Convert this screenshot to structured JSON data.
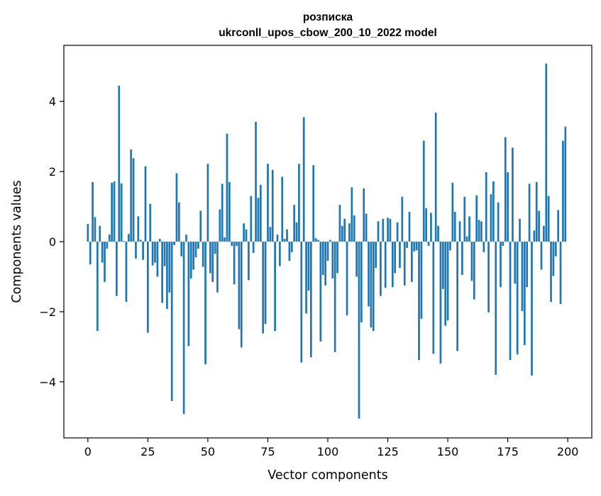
{
  "chart_data": {
    "type": "bar",
    "title": "розписка",
    "subtitle": "ukrconll_upos_cbow_200_10_2022 model",
    "xlabel": "Vector components",
    "ylabel": "Components values",
    "xlim": [
      -10,
      210
    ],
    "ylim": [
      -5.6,
      5.6
    ],
    "xticks": [
      0,
      25,
      50,
      75,
      100,
      125,
      150,
      175,
      200
    ],
    "xtick_labels": [
      "0",
      "25",
      "50",
      "75",
      "100",
      "125",
      "150",
      "175",
      "200"
    ],
    "yticks": [
      -4,
      -2,
      0,
      2,
      4
    ],
    "ytick_labels": [
      "−4",
      "−2",
      "0",
      "2",
      "4"
    ],
    "bar_color": "#1f77b4",
    "grid": false,
    "x": [
      0,
      1,
      2,
      3,
      4,
      5,
      6,
      7,
      8,
      9,
      10,
      11,
      12,
      13,
      14,
      15,
      16,
      17,
      18,
      19,
      20,
      21,
      22,
      23,
      24,
      25,
      26,
      27,
      28,
      29,
      30,
      31,
      32,
      33,
      34,
      35,
      36,
      37,
      38,
      39,
      40,
      41,
      42,
      43,
      44,
      45,
      46,
      47,
      48,
      49,
      50,
      51,
      52,
      53,
      54,
      55,
      56,
      57,
      58,
      59,
      60,
      61,
      62,
      63,
      64,
      65,
      66,
      67,
      68,
      69,
      70,
      71,
      72,
      73,
      74,
      75,
      76,
      77,
      78,
      79,
      80,
      81,
      82,
      83,
      84,
      85,
      86,
      87,
      88,
      89,
      90,
      91,
      92,
      93,
      94,
      95,
      96,
      97,
      98,
      99,
      100,
      101,
      102,
      103,
      104,
      105,
      106,
      107,
      108,
      109,
      110,
      111,
      112,
      113,
      114,
      115,
      116,
      117,
      118,
      119,
      120,
      121,
      122,
      123,
      124,
      125,
      126,
      127,
      128,
      129,
      130,
      131,
      132,
      133,
      134,
      135,
      136,
      137,
      138,
      139,
      140,
      141,
      142,
      143,
      144,
      145,
      146,
      147,
      148,
      149,
      150,
      151,
      152,
      153,
      154,
      155,
      156,
      157,
      158,
      159,
      160,
      161,
      162,
      163,
      164,
      165,
      166,
      167,
      168,
      169,
      170,
      171,
      172,
      173,
      174,
      175,
      176,
      177,
      178,
      179,
      180,
      181,
      182,
      183,
      184,
      185,
      186,
      187,
      188,
      189,
      190,
      191,
      192,
      193,
      194,
      195,
      196,
      197,
      198,
      199
    ],
    "values": [
      0.5,
      -0.65,
      1.7,
      0.7,
      -2.55,
      0.45,
      -0.6,
      -1.15,
      -0.2,
      0.2,
      1.68,
      1.72,
      -1.55,
      4.45,
      1.66,
      0.02,
      -1.72,
      0.22,
      2.63,
      2.38,
      -0.48,
      0.72,
      0.05,
      -0.52,
      2.15,
      -2.6,
      1.08,
      -0.68,
      -0.6,
      -1.0,
      0.08,
      -1.75,
      -0.7,
      -1.92,
      -1.45,
      -4.55,
      -0.1,
      1.95,
      1.12,
      -0.42,
      -4.92,
      0.2,
      -2.98,
      -1.05,
      -0.8,
      -0.45,
      -0.2,
      0.88,
      -0.72,
      -3.5,
      2.22,
      -0.9,
      -1.15,
      -0.35,
      -1.45,
      0.92,
      1.65,
      0.12,
      3.08,
      1.7,
      -0.12,
      -1.22,
      -0.12,
      -2.5,
      -3.02,
      0.52,
      0.35,
      -1.1,
      1.3,
      -0.32,
      3.42,
      1.25,
      1.62,
      -2.62,
      -2.35,
      2.22,
      0.42,
      2.05,
      -2.55,
      0.2,
      -0.7,
      1.85,
      0.08,
      0.35,
      -0.55,
      -0.3,
      1.05,
      0.55,
      2.22,
      -3.45,
      3.55,
      -2.05,
      -1.4,
      -3.3,
      2.18,
      0.1,
      0.05,
      -2.85,
      -0.95,
      -1.25,
      -0.55,
      0.05,
      -1.05,
      -3.15,
      -0.9,
      1.05,
      0.45,
      0.65,
      -2.1,
      0.52,
      1.55,
      0.75,
      -1.0,
      -5.05,
      -2.3,
      1.52,
      0.8,
      -1.85,
      -2.45,
      -2.55,
      -0.75,
      0.58,
      -1.55,
      0.65,
      -1.32,
      0.68,
      0.65,
      -1.3,
      -0.9,
      0.55,
      -0.75,
      1.28,
      -1.25,
      -0.18,
      0.85,
      -1.15,
      -0.28,
      -0.25,
      -3.38,
      -2.2,
      2.88,
      0.95,
      -0.12,
      0.82,
      -3.2,
      3.68,
      0.45,
      -3.48,
      -1.35,
      -2.4,
      -2.25,
      -0.25,
      1.68,
      0.85,
      -3.12,
      0.58,
      -0.95,
      1.28,
      0.15,
      0.72,
      -1.12,
      -1.65,
      1.32,
      0.62,
      0.58,
      -0.3,
      1.98,
      -2.02,
      1.35,
      1.72,
      -3.8,
      1.12,
      -1.3,
      -0.12,
      2.98,
      1.98,
      -3.38,
      2.68,
      -1.2,
      -3.22,
      0.65,
      -1.98,
      -2.95,
      -1.3,
      1.65,
      -3.82,
      0.32,
      1.7,
      0.88,
      -0.8,
      0.45,
      5.08,
      1.3,
      -1.72,
      -0.98,
      -0.42,
      0.9,
      -1.78,
      2.88,
      3.28
    ]
  }
}
